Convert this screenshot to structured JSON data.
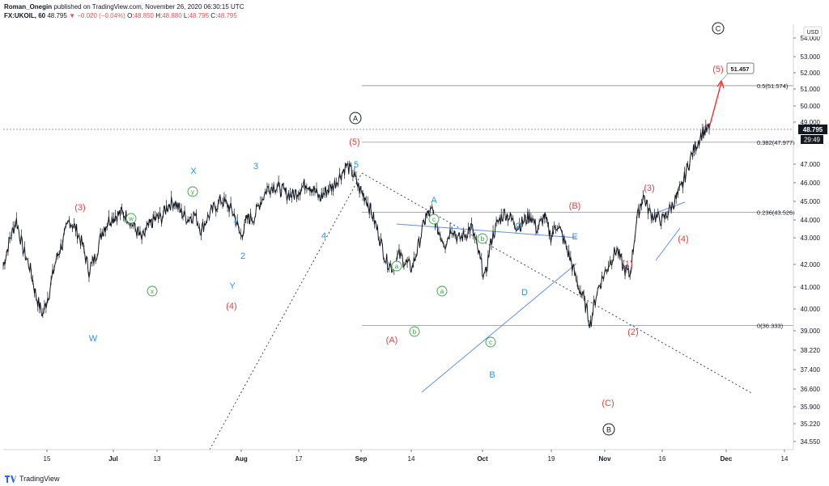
{
  "header": {
    "author": "Roman_Onegin",
    "published": "published on TradingView.com, November 26, 2020 06:30:15 UTC",
    "symbol": "FX:UKOIL, 60",
    "last": "48.795",
    "change": "−0.020 (−0.04%)",
    "o_label": "O:",
    "o": "48.850",
    "h_label": "H:",
    "h": "48.880",
    "l_label": "L:",
    "l": "48.795",
    "c_label": "C:",
    "c": "48.795"
  },
  "footer": {
    "brand": "TradingView"
  },
  "chart_data": {
    "type": "line",
    "currency": "USD",
    "ylim": [
      34.0,
      54.4
    ],
    "y_ticks": [
      "54.000",
      "53.000",
      "52.000",
      "51.000",
      "50.000",
      "49.000",
      "47.000",
      "46.000",
      "45.000",
      "44.000",
      "43.000",
      "42.000",
      "41.000",
      "40.000",
      "39.000",
      "38.220",
      "37.400",
      "36.600",
      "35.900",
      "35.220",
      "34.550"
    ],
    "x_ticks": [
      "15",
      "Jul",
      "13",
      "Aug",
      "17",
      "Sep",
      "14",
      "Oct",
      "19",
      "Nov",
      "16",
      "Dec",
      "14"
    ],
    "series": [
      {
        "values": [
          40.1,
          41.8,
          43.0,
          41.2,
          40.1,
          38.2,
          37.0,
          38.5,
          40.5,
          41.6,
          43.0,
          42.5,
          41.5,
          39.8,
          40.7,
          42.3,
          43.0,
          43.3,
          43.5,
          43.2,
          42.5,
          41.8,
          42.6,
          43.1,
          43.2,
          44.0,
          44.2,
          43.5,
          43.1,
          43.4,
          42.4,
          43.2,
          43.8,
          44.3,
          44.0,
          43.4,
          42.0,
          43.1,
          43.2,
          44.2,
          45.0,
          45.2,
          45.0,
          44.7,
          44.6,
          45.0,
          45.4,
          45.0,
          44.4,
          44.9,
          45.2,
          45.8,
          46.5,
          46.0,
          45.0,
          44.4,
          43.3,
          42.0,
          40.5,
          40.0,
          40.8,
          40.3,
          40.0,
          41.5,
          43.2,
          43.6,
          42.3,
          41.5,
          42.6,
          41.8,
          42.1,
          42.6,
          41.0,
          39.3,
          41.8,
          42.9,
          43.5,
          43.1,
          42.6,
          43.0,
          43.3,
          42.4,
          43.3,
          42.0,
          42.8,
          41.7,
          40.5,
          39.0,
          38.0,
          36.4,
          38.5,
          39.5,
          40.4,
          41.2,
          40.0,
          39.5,
          43.0,
          44.6,
          43.5,
          43.2,
          43.0,
          43.7,
          44.4,
          45.3,
          46.8,
          47.8,
          48.6,
          48.795
        ]
      },
      {
        "name": "Fibonacci levels",
        "values": [
          51.574,
          47.977,
          43.526,
          36.333
        ]
      }
    ],
    "fib_labels": [
      "0.5(51.574)",
      "0.382(47.977)",
      "0.236(43.526)",
      "0(36.333)"
    ],
    "last_price": "48.795",
    "countdown": "29:49",
    "target_label": "51.457",
    "wave_labels": {
      "red": [
        "(3)",
        "(4)",
        "(5)",
        "(A)",
        "(B)",
        "(C)",
        "(1)",
        "(2)",
        "(3)",
        "(4)",
        "(5)"
      ],
      "blue": [
        "W",
        "X",
        "Y",
        "1",
        "2",
        "3",
        "4",
        "5",
        "A",
        "B",
        "C",
        "D",
        "E"
      ],
      "green": [
        "w",
        "x",
        "y",
        "a",
        "b",
        "c",
        "a",
        "b",
        "c"
      ],
      "black_circled": [
        "A",
        "B",
        "C"
      ]
    },
    "colors": {
      "candles": "#131722",
      "red_labels": "#ef3b3b",
      "blue_labels": "#2196f3",
      "green_labels": "#33a33a",
      "trendline_blue": "#5b8ff0",
      "target_arrow": "#ff2a2a"
    },
    "grid": false,
    "legend": "none"
  }
}
